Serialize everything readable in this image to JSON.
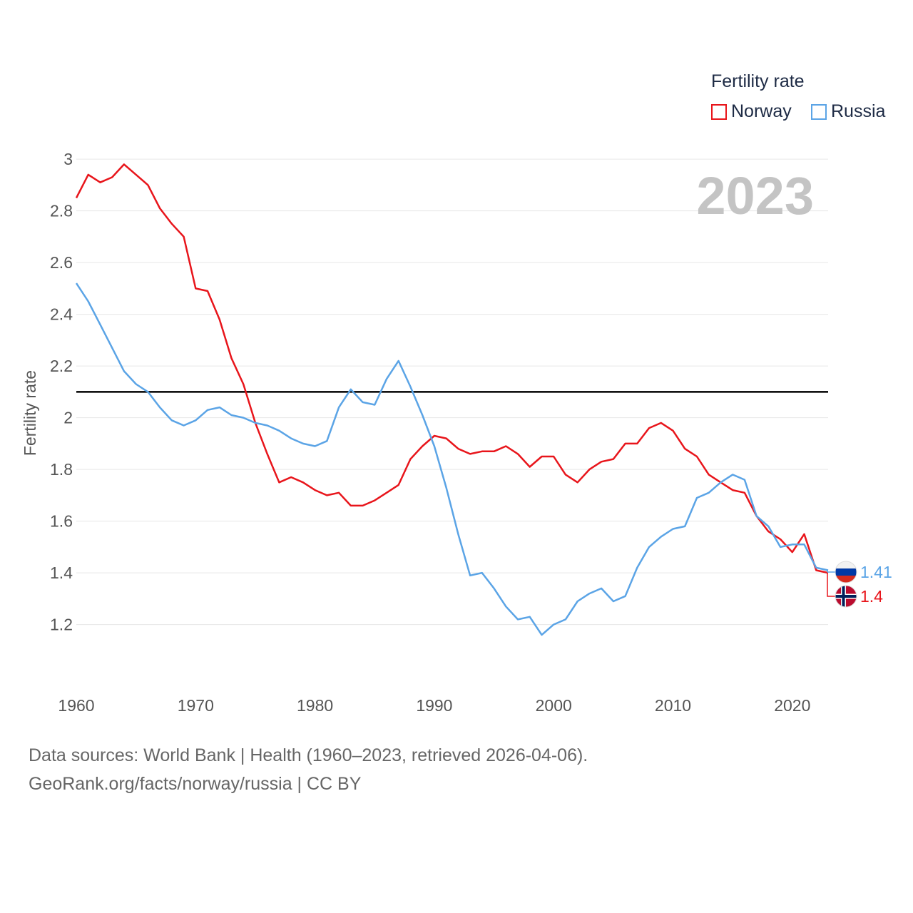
{
  "legend": {
    "title": "Fertility rate",
    "items": [
      {
        "name": "Norway",
        "color": "#e8151b"
      },
      {
        "name": "Russia",
        "color": "#5ba4e6"
      }
    ]
  },
  "footer": {
    "source": "Data sources: World Bank | Health (1960–2023, retrieved 2026-04-06).",
    "credit": "GeoRank.org/facts/norway/russia | CC BY"
  },
  "chart_data": {
    "type": "line",
    "title": "Fertility rate",
    "year_label": "2023",
    "ylabel": "Fertility rate",
    "xlabel": "",
    "xlim": [
      1960,
      2023
    ],
    "ylim": [
      1.05,
      3.05
    ],
    "yticks": [
      1.2,
      1.4,
      1.6,
      1.8,
      2,
      2.2,
      2.4,
      2.6,
      2.8,
      3
    ],
    "xticks": [
      1960,
      1970,
      1980,
      1990,
      2000,
      2010,
      2020
    ],
    "reference_line": 2.1,
    "x": [
      1960,
      1961,
      1962,
      1963,
      1964,
      1965,
      1966,
      1967,
      1968,
      1969,
      1970,
      1971,
      1972,
      1973,
      1974,
      1975,
      1976,
      1977,
      1978,
      1979,
      1980,
      1981,
      1982,
      1983,
      1984,
      1985,
      1986,
      1987,
      1988,
      1989,
      1990,
      1991,
      1992,
      1993,
      1994,
      1995,
      1996,
      1997,
      1998,
      1999,
      2000,
      2001,
      2002,
      2003,
      2004,
      2005,
      2006,
      2007,
      2008,
      2009,
      2010,
      2011,
      2012,
      2013,
      2014,
      2015,
      2016,
      2017,
      2018,
      2019,
      2020,
      2021,
      2022,
      2023
    ],
    "series": [
      {
        "name": "Norway",
        "color": "#e8151b",
        "end_label": "1.4",
        "values": [
          2.85,
          2.94,
          2.91,
          2.93,
          2.98,
          2.94,
          2.9,
          2.81,
          2.75,
          2.7,
          2.5,
          2.49,
          2.38,
          2.23,
          2.13,
          1.98,
          1.86,
          1.75,
          1.77,
          1.75,
          1.72,
          1.7,
          1.71,
          1.66,
          1.66,
          1.68,
          1.71,
          1.74,
          1.84,
          1.89,
          1.93,
          1.92,
          1.88,
          1.86,
          1.87,
          1.87,
          1.89,
          1.86,
          1.81,
          1.85,
          1.85,
          1.78,
          1.75,
          1.8,
          1.83,
          1.84,
          1.9,
          1.9,
          1.96,
          1.98,
          1.95,
          1.88,
          1.85,
          1.78,
          1.75,
          1.72,
          1.71,
          1.62,
          1.56,
          1.53,
          1.48,
          1.55,
          1.41,
          1.4
        ]
      },
      {
        "name": "Russia",
        "color": "#5ba4e6",
        "end_label": "1.41",
        "values": [
          2.52,
          2.45,
          2.36,
          2.27,
          2.18,
          2.13,
          2.1,
          2.04,
          1.99,
          1.97,
          1.99,
          2.03,
          2.04,
          2.01,
          2.0,
          1.98,
          1.97,
          1.95,
          1.92,
          1.9,
          1.89,
          1.91,
          2.04,
          2.11,
          2.06,
          2.05,
          2.15,
          2.22,
          2.12,
          2.01,
          1.89,
          1.73,
          1.55,
          1.39,
          1.4,
          1.34,
          1.27,
          1.22,
          1.23,
          1.16,
          1.2,
          1.22,
          1.29,
          1.32,
          1.34,
          1.29,
          1.31,
          1.42,
          1.5,
          1.54,
          1.57,
          1.58,
          1.69,
          1.71,
          1.75,
          1.78,
          1.76,
          1.62,
          1.58,
          1.5,
          1.51,
          1.51,
          1.42,
          1.41
        ]
      }
    ]
  }
}
